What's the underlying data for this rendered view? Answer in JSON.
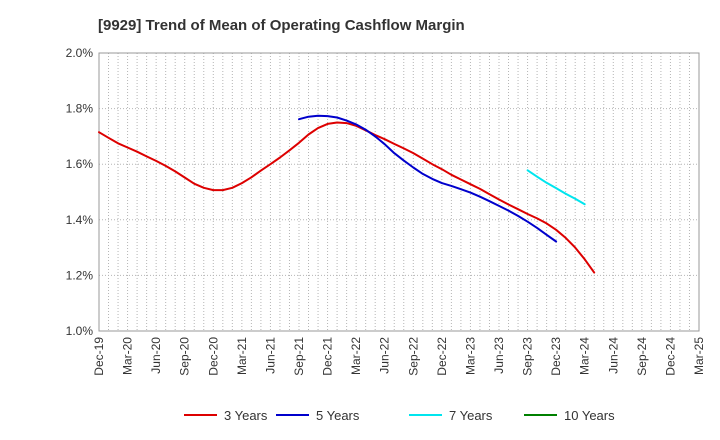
{
  "chart_data": {
    "type": "line",
    "title": "[9929]  Trend of Mean of Operating Cashflow Margin",
    "xlabel": "",
    "ylabel": "",
    "ylim": [
      1.0,
      2.0
    ],
    "y_ticks": [
      "1.0%",
      "1.2%",
      "1.4%",
      "1.6%",
      "1.8%",
      "2.0%"
    ],
    "y_tick_values": [
      1.0,
      1.2,
      1.4,
      1.6,
      1.8,
      2.0
    ],
    "x_tick_labels": [
      "Dec-19",
      "Mar-20",
      "Jun-20",
      "Sep-20",
      "Dec-20",
      "Mar-21",
      "Jun-21",
      "Sep-21",
      "Dec-21",
      "Mar-22",
      "Jun-22",
      "Sep-22",
      "Dec-22",
      "Mar-23",
      "Jun-23",
      "Sep-23",
      "Dec-23",
      "Mar-24",
      "Jun-24",
      "Sep-24",
      "Dec-24",
      "Mar-25"
    ],
    "grid": true,
    "legend_position": "bottom",
    "series": [
      {
        "name": "3 Years",
        "color": "#dd0000",
        "start_month_index": 0,
        "values": [
          1.715,
          1.695,
          1.675,
          1.66,
          1.645,
          1.628,
          1.612,
          1.594,
          1.574,
          1.552,
          1.53,
          1.515,
          1.507,
          1.507,
          1.515,
          1.532,
          1.553,
          1.577,
          1.6,
          1.624,
          1.65,
          1.677,
          1.707,
          1.73,
          1.745,
          1.75,
          1.748,
          1.738,
          1.722,
          1.705,
          1.69,
          1.673,
          1.657,
          1.64,
          1.62,
          1.6,
          1.582,
          1.562,
          1.545,
          1.528,
          1.511,
          1.492,
          1.473,
          1.455,
          1.438,
          1.421,
          1.405,
          1.387,
          1.364,
          1.335,
          1.3,
          1.258,
          1.21
        ]
      },
      {
        "name": "5 Years",
        "color": "#0000cc",
        "start_month_index": 21,
        "values": [
          1.762,
          1.771,
          1.774,
          1.773,
          1.768,
          1.757,
          1.743,
          1.724,
          1.7,
          1.672,
          1.64,
          1.613,
          1.588,
          1.565,
          1.547,
          1.532,
          1.522,
          1.51,
          1.498,
          1.483,
          1.467,
          1.45,
          1.433,
          1.414,
          1.393,
          1.371,
          1.346,
          1.322
        ]
      },
      {
        "name": "7 Years",
        "color": "#00e5ee",
        "start_month_index": 45,
        "values": [
          1.578,
          1.555,
          1.533,
          1.514,
          1.494,
          1.476,
          1.456
        ]
      },
      {
        "name": "10 Years",
        "color": "#008000",
        "start_month_index": 0,
        "values": []
      }
    ]
  }
}
